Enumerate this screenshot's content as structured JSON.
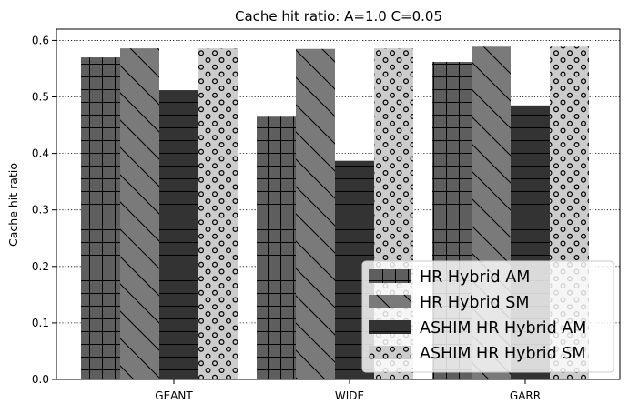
{
  "chart_data": {
    "type": "bar",
    "title": "Cache hit ratio: A=1.0 C=0.05",
    "xlabel": "",
    "ylabel": "Cache hit ratio",
    "ylim": [
      0,
      0.62
    ],
    "yticks": [
      0.0,
      0.1,
      0.2,
      0.3,
      0.4,
      0.5,
      0.6
    ],
    "ytick_labels": [
      "0.0",
      "0.1",
      "0.2",
      "0.3",
      "0.4",
      "0.5",
      "0.6"
    ],
    "grid": "horizontal dotted",
    "legend_position": "bottom-right",
    "categories": [
      "GEANT",
      "WIDE",
      "GARR"
    ],
    "series": [
      {
        "name": "HR Hybrid AM",
        "values": [
          0.57,
          0.465,
          0.562
        ],
        "color": "#5e5e5e",
        "pattern": "grid"
      },
      {
        "name": "HR Hybrid SM",
        "values": [
          0.586,
          0.585,
          0.589
        ],
        "color": "#7a7a7a",
        "pattern": "diagonal"
      },
      {
        "name": "ASHIM HR Hybrid AM",
        "values": [
          0.512,
          0.387,
          0.485
        ],
        "color": "#333333",
        "pattern": "horizontal"
      },
      {
        "name": "ASHIM HR Hybrid SM",
        "values": [
          0.586,
          0.586,
          0.589
        ],
        "color": "#cccccc",
        "pattern": "circles"
      }
    ]
  }
}
